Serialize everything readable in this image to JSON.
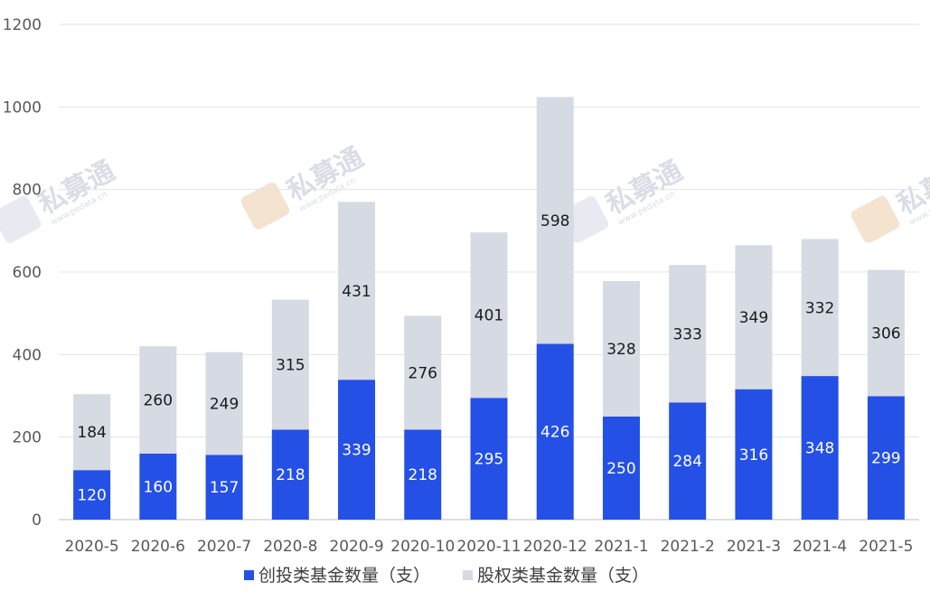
{
  "chart_data": {
    "type": "bar",
    "stacked": true,
    "categories": [
      "2020-5",
      "2020-6",
      "2020-7",
      "2020-8",
      "2020-9",
      "2020-10",
      "2020-11",
      "2020-12",
      "2021-1",
      "2021-2",
      "2021-3",
      "2021-4",
      "2021-5"
    ],
    "series": [
      {
        "name": "创投类基金数量（支）",
        "values": [
          120,
          160,
          157,
          218,
          339,
          218,
          295,
          426,
          250,
          284,
          316,
          348,
          299
        ],
        "color": "#2450e6"
      },
      {
        "name": "股权类基金数量（支）",
        "values": [
          184,
          260,
          249,
          315,
          431,
          276,
          401,
          598,
          328,
          333,
          349,
          332,
          306
        ],
        "color": "#d5dae3"
      }
    ],
    "yticks": [
      0,
      200,
      400,
      600,
      800,
      1000,
      1200
    ],
    "ylim": [
      0,
      1200
    ],
    "grid": true,
    "legend": "bottom"
  },
  "watermark": {
    "text": "私募通",
    "url": "www.pedata.cn"
  }
}
